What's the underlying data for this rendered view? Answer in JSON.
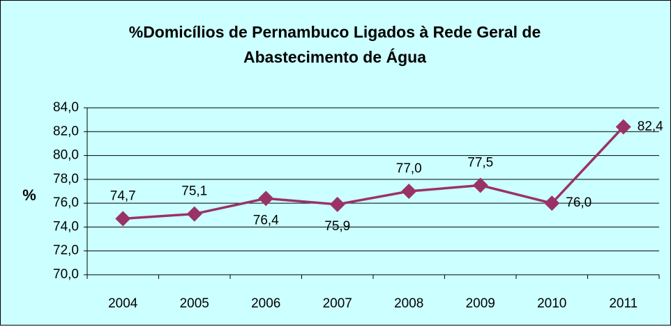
{
  "chart_data": {
    "type": "line",
    "title": [
      "%Domicílios de Pernambuco Ligados à Rede Geral de",
      "Abastecimento de Água"
    ],
    "y_label": "%",
    "categories": [
      "2004",
      "2005",
      "2006",
      "2007",
      "2008",
      "2009",
      "2010",
      "2011"
    ],
    "series": [
      {
        "name": "%",
        "color": "#993366",
        "values": [
          74.7,
          75.1,
          76.4,
          75.9,
          77.0,
          77.5,
          76.0,
          82.4
        ],
        "value_labels": [
          "74,7",
          "75,1",
          "76,4",
          "75,9",
          "77,0",
          "77,5",
          "76,0",
          "82,4"
        ]
      }
    ],
    "ylim": [
      70,
      84
    ],
    "yticks": [
      {
        "value": 70,
        "label": "70,0"
      },
      {
        "value": 72,
        "label": "72,0"
      },
      {
        "value": 74,
        "label": "74,0"
      },
      {
        "value": 76,
        "label": "76,0"
      },
      {
        "value": 78,
        "label": "78,0"
      },
      {
        "value": 80,
        "label": "80,0"
      },
      {
        "value": 82,
        "label": "82,0"
      },
      {
        "value": 84,
        "label": "84,0"
      }
    ],
    "grid": true
  }
}
